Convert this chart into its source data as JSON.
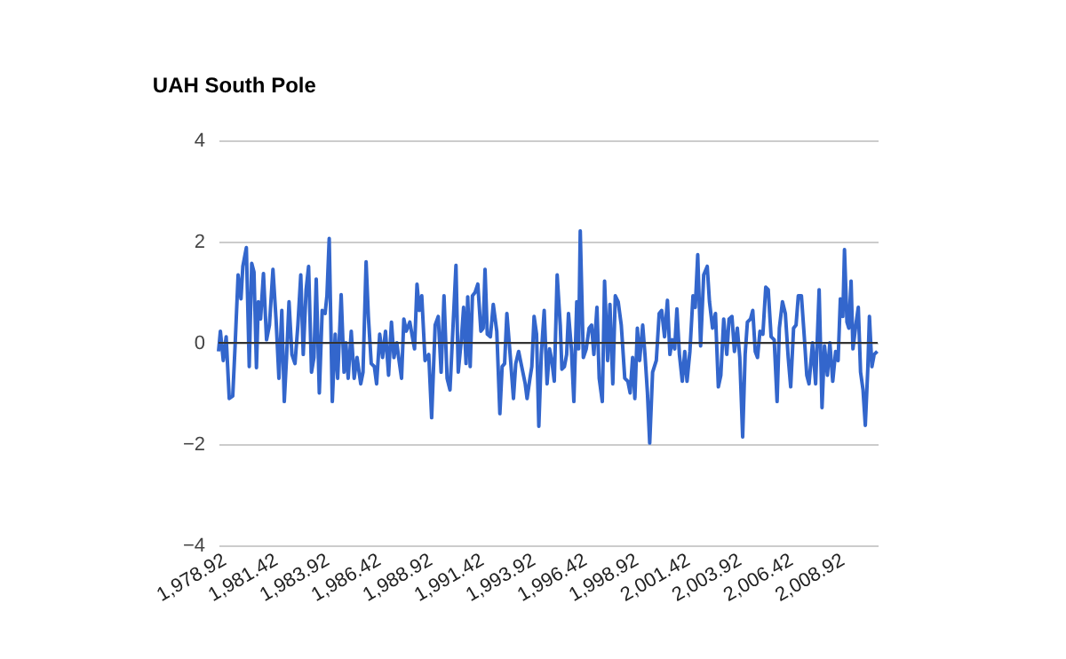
{
  "chart_data": {
    "type": "line",
    "title": "UAH South Pole",
    "x": [
      1978.92,
      1979.01,
      1979.15,
      1979.29,
      1979.44,
      1979.61,
      1979.72,
      1979.87,
      1980.01,
      1980.1,
      1980.27,
      1980.41,
      1980.53,
      1980.64,
      1980.76,
      1980.85,
      1980.96,
      1981.1,
      1981.25,
      1981.39,
      1981.56,
      1981.71,
      1981.85,
      1981.99,
      1982.11,
      1982.22,
      1982.34,
      1982.48,
      1982.63,
      1982.77,
      1982.91,
      1983.03,
      1983.17,
      1983.29,
      1983.43,
      1983.55,
      1983.66,
      1983.81,
      1983.95,
      1984.09,
      1984.18,
      1984.29,
      1984.44,
      1984.58,
      1984.7,
      1984.87,
      1985.01,
      1985.1,
      1985.21,
      1985.36,
      1985.5,
      1985.64,
      1985.82,
      1985.93,
      1986.08,
      1986.19,
      1986.33,
      1986.48,
      1986.59,
      1986.74,
      1986.88,
      1987.02,
      1987.17,
      1987.31,
      1987.43,
      1987.57,
      1987.68,
      1987.8,
      1987.91,
      1988.03,
      1988.2,
      1988.43,
      1988.55,
      1988.66,
      1988.78,
      1988.94,
      1989.12,
      1989.26,
      1989.43,
      1989.58,
      1989.72,
      1989.86,
      1990.01,
      1990.15,
      1990.3,
      1990.44,
      1990.55,
      1990.7,
      1990.81,
      1990.93,
      1991.01,
      1991.13,
      1991.24,
      1991.36,
      1991.5,
      1991.65,
      1991.76,
      1991.85,
      1991.96,
      1992.11,
      1992.25,
      1992.42,
      1992.57,
      1992.68,
      1992.8,
      1992.91,
      1993.08,
      1993.23,
      1993.34,
      1993.48,
      1993.63,
      1993.8,
      1993.89,
      1994.03,
      1994.12,
      1994.23,
      1994.35,
      1994.46,
      1994.58,
      1994.72,
      1994.86,
      1994.98,
      1995.09,
      1995.21,
      1995.35,
      1995.5,
      1995.58,
      1995.7,
      1995.81,
      1995.9,
      1996.04,
      1996.16,
      1996.3,
      1996.39,
      1996.47,
      1996.62,
      1996.76,
      1996.9,
      1997.02,
      1997.13,
      1997.28,
      1997.39,
      1997.54,
      1997.65,
      1997.8,
      1997.91,
      1998.05,
      1998.17,
      1998.31,
      1998.46,
      1998.49,
      1998.63,
      1998.78,
      1998.89,
      1999.01,
      1999.12,
      1999.24,
      1999.35,
      1999.5,
      1999.61,
      1999.73,
      1999.84,
      1999.98,
      2000.16,
      2000.3,
      2000.42,
      2000.56,
      2000.7,
      2000.82,
      2000.93,
      2001.05,
      2001.16,
      2001.28,
      2001.42,
      2001.54,
      2001.65,
      2001.79,
      2001.94,
      2002.05,
      2002.17,
      2002.31,
      2002.46,
      2002.63,
      2002.74,
      2002.89,
      2003.03,
      2003.17,
      2003.29,
      2003.43,
      2003.58,
      2003.69,
      2003.83,
      2003.95,
      2004.09,
      2004.21,
      2004.35,
      2004.47,
      2004.58,
      2004.73,
      2004.84,
      2004.96,
      2005.07,
      2005.19,
      2005.33,
      2005.47,
      2005.59,
      2005.73,
      2005.88,
      2006.02,
      2006.13,
      2006.28,
      2006.42,
      2006.56,
      2006.68,
      2006.82,
      2006.94,
      2007.05,
      2007.2,
      2007.34,
      2007.46,
      2007.57,
      2007.74,
      2007.89,
      2008.06,
      2008.2,
      2008.32,
      2008.46,
      2008.58,
      2008.72,
      2008.86,
      2008.98,
      2009.09,
      2009.21,
      2009.29,
      2009.41,
      2009.5,
      2009.61,
      2009.7,
      2009.84,
      2009.96,
      2010.07,
      2010.19,
      2010.3,
      2010.42,
      2010.5,
      2010.62,
      2010.73,
      2010.88
    ],
    "series": [
      {
        "color": "#3366cc",
        "values": [
          -0.17,
          0.23,
          -0.35,
          0.12,
          -1.1,
          -1.05,
          -0.09,
          1.34,
          0.87,
          1.51,
          1.88,
          -0.47,
          1.57,
          1.4,
          -0.49,
          0.81,
          0.47,
          1.37,
          0.06,
          0.35,
          1.45,
          0.47,
          -0.7,
          0.64,
          -1.16,
          -0.29,
          0.81,
          -0.23,
          -0.41,
          0.35,
          1.34,
          -0.23,
          1.05,
          1.51,
          -0.58,
          -0.29,
          1.26,
          -0.99,
          0.64,
          0.58,
          0.93,
          2.06,
          -1.16,
          0.17,
          -0.7,
          0.95,
          -0.58,
          0.0,
          -0.7,
          0.23,
          -0.7,
          -0.29,
          -0.81,
          -0.58,
          1.6,
          0.52,
          -0.41,
          -0.47,
          -0.81,
          0.17,
          -0.29,
          0.23,
          -0.64,
          0.41,
          -0.29,
          0.0,
          -0.35,
          -0.7,
          0.47,
          0.23,
          0.41,
          -0.12,
          1.16,
          0.64,
          0.93,
          -0.35,
          -0.23,
          -1.48,
          0.35,
          0.52,
          -0.58,
          0.93,
          -0.7,
          -0.93,
          0.35,
          1.53,
          -0.58,
          0.06,
          0.7,
          -0.41,
          0.91,
          -0.47,
          0.93,
          0.99,
          1.16,
          0.23,
          0.29,
          1.45,
          0.17,
          0.12,
          0.76,
          0.23,
          -1.4,
          -0.47,
          -0.41,
          0.58,
          -0.29,
          -1.1,
          -0.41,
          -0.17,
          -0.47,
          -0.81,
          -1.1,
          -0.7,
          -0.47,
          0.52,
          0.17,
          -1.65,
          -0.23,
          0.64,
          -0.81,
          -0.12,
          -0.35,
          -0.76,
          1.34,
          0.35,
          -0.52,
          -0.47,
          -0.23,
          0.58,
          -0.12,
          -1.16,
          0.81,
          -0.12,
          2.21,
          -0.29,
          -0.12,
          0.29,
          0.35,
          -0.23,
          0.7,
          -0.7,
          -1.16,
          1.22,
          -0.35,
          0.76,
          -0.81,
          0.93,
          0.81,
          0.35,
          0.17,
          -0.7,
          -0.76,
          -0.99,
          -0.29,
          -1.1,
          0.29,
          -0.35,
          0.35,
          -0.23,
          -0.99,
          -1.98,
          -0.58,
          -0.35,
          0.58,
          0.64,
          0.12,
          0.84,
          -0.23,
          0.06,
          -0.12,
          0.67,
          -0.23,
          -0.76,
          -0.17,
          -0.76,
          -0.17,
          0.93,
          0.7,
          1.74,
          -0.06,
          1.34,
          1.51,
          0.81,
          0.29,
          0.58,
          -0.87,
          -0.64,
          0.47,
          -0.23,
          0.47,
          0.52,
          -0.17,
          0.29,
          -0.29,
          -1.86,
          -0.23,
          0.41,
          0.47,
          0.64,
          -0.17,
          -0.29,
          0.23,
          0.17,
          1.1,
          1.05,
          0.12,
          0.06,
          -1.16,
          0.29,
          0.81,
          0.58,
          -0.29,
          -0.87,
          0.29,
          0.35,
          0.93,
          0.93,
          0.12,
          -0.64,
          -0.81,
          0.0,
          -0.81,
          1.05,
          -1.28,
          -0.06,
          -0.64,
          0.0,
          -0.76,
          -0.17,
          -0.35,
          0.87,
          0.52,
          1.84,
          0.41,
          0.29,
          1.22,
          -0.12,
          0.35,
          0.7,
          -0.58,
          -0.93,
          -1.63,
          -0.52,
          0.52,
          -0.47,
          -0.23,
          -0.17
        ]
      }
    ],
    "xlim": [
      1978.92,
      2010.9
    ],
    "xticks": [
      {
        "value": 1978.92,
        "label": "1,978.92"
      },
      {
        "value": 1981.42,
        "label": "1,981.42"
      },
      {
        "value": 1983.92,
        "label": "1,983.92"
      },
      {
        "value": 1986.42,
        "label": "1,986.42"
      },
      {
        "value": 1988.92,
        "label": "1,988.92"
      },
      {
        "value": 1991.42,
        "label": "1,991.42"
      },
      {
        "value": 1993.92,
        "label": "1,993.92"
      },
      {
        "value": 1996.42,
        "label": "1,996.42"
      },
      {
        "value": 1998.92,
        "label": "1,998.92"
      },
      {
        "value": 2001.42,
        "label": "2,001.42"
      },
      {
        "value": 2003.92,
        "label": "2,003.92"
      },
      {
        "value": 2006.42,
        "label": "2,006.42"
      },
      {
        "value": 2008.92,
        "label": "2,008.92"
      }
    ],
    "ylim": [
      -4,
      4
    ],
    "yticks": [
      -4,
      -2,
      0,
      2,
      4
    ],
    "grid": "y",
    "ref_lines": [
      {
        "axis": "y",
        "value": 0,
        "color": "#333333"
      }
    ]
  }
}
